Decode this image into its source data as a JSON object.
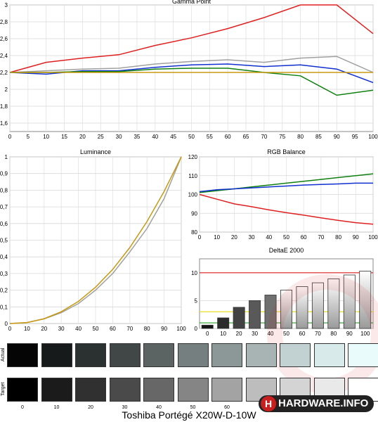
{
  "caption": "Toshiba Portégé X20W-D-10W",
  "logo_text": "HARDWARE.INFO",
  "logo_letter": "H",
  "patch_rows": {
    "actual": "Actual",
    "target": "Target"
  },
  "patches": {
    "labels": [
      "0",
      "10",
      "20",
      "30",
      "40",
      "50",
      "60",
      "70",
      "80",
      "90",
      "100"
    ],
    "actual_colors": [
      "#050505",
      "#161a1a",
      "#2b3131",
      "#404746",
      "#5b6363",
      "#767f7f",
      "#8c9797",
      "#a8b4b4",
      "#c2d1d1",
      "#d9eaea",
      "#e9fbfb"
    ],
    "target_colors": [
      "#000000",
      "#1b1b1b",
      "#303030",
      "#4a4a4a",
      "#676767",
      "#858585",
      "#a3a3a3",
      "#bdbdbd",
      "#d4d4d4",
      "#e9e9e9",
      "#ffffff"
    ]
  },
  "chart_data": [
    {
      "type": "line",
      "title": "Gamma Point",
      "x": [
        0,
        10,
        20,
        30,
        40,
        50,
        60,
        70,
        80,
        90,
        100
      ],
      "xticks": [
        "0",
        "5",
        "10",
        "15",
        "20",
        "25",
        "30",
        "35",
        "40",
        "45",
        "50",
        "55",
        "60",
        "65",
        "70",
        "75",
        "80",
        "85",
        "90",
        "95",
        "100"
      ],
      "yticks": [
        "1,6",
        "1,8",
        "2",
        "2,2",
        "2,4",
        "2,6",
        "2,8",
        "3"
      ],
      "ylim": [
        1.5,
        3.0
      ],
      "series": [
        {
          "color": "#e02020",
          "values": [
            2.2,
            2.32,
            2.37,
            2.41,
            2.52,
            2.61,
            2.72,
            2.85,
            3.0,
            3.0,
            2.66
          ]
        },
        {
          "color": "#a0a0a0",
          "values": [
            2.2,
            2.22,
            2.24,
            2.25,
            2.3,
            2.33,
            2.35,
            2.32,
            2.37,
            2.39,
            2.2
          ]
        },
        {
          "color": "#1030d0",
          "values": [
            2.2,
            2.18,
            2.22,
            2.22,
            2.26,
            2.29,
            2.3,
            2.27,
            2.29,
            2.24,
            2.08
          ]
        },
        {
          "color": "#108010",
          "values": [
            2.2,
            2.2,
            2.21,
            2.21,
            2.24,
            2.25,
            2.25,
            2.2,
            2.16,
            1.93,
            1.99
          ]
        },
        {
          "color": "#c89a10",
          "values": [
            2.2,
            2.2,
            2.2,
            2.2,
            2.2,
            2.2,
            2.2,
            2.2,
            2.2,
            2.2,
            2.2
          ]
        }
      ]
    },
    {
      "type": "line",
      "title": "Luminance",
      "x": [
        0,
        10,
        20,
        30,
        40,
        50,
        60,
        70,
        80,
        90,
        100
      ],
      "xticks": [
        "0",
        "10",
        "20",
        "30",
        "40",
        "50",
        "60",
        "70",
        "80",
        "90",
        "100"
      ],
      "yticks": [
        "0",
        "0,1",
        "0,2",
        "0,3",
        "0,4",
        "0,5",
        "0,6",
        "0,7",
        "0,8",
        "0,9",
        "1"
      ],
      "ylim": [
        0,
        1
      ],
      "series": [
        {
          "color": "#a0a0a0",
          "values": [
            0,
            0.006,
            0.028,
            0.065,
            0.12,
            0.2,
            0.3,
            0.43,
            0.57,
            0.75,
            1.0
          ]
        },
        {
          "color": "#c89a10",
          "values": [
            0,
            0.006,
            0.029,
            0.071,
            0.133,
            0.218,
            0.325,
            0.456,
            0.612,
            0.793,
            1.0
          ]
        }
      ]
    },
    {
      "type": "line",
      "title": "RGB Balance",
      "x": [
        0,
        10,
        20,
        30,
        40,
        50,
        60,
        70,
        80,
        90,
        100
      ],
      "xticks": [
        "0",
        "10",
        "20",
        "30",
        "40",
        "50",
        "60",
        "70",
        "80",
        "90",
        "100"
      ],
      "yticks": [
        "80",
        "90",
        "100",
        "110",
        "120"
      ],
      "ylim": [
        80,
        120
      ],
      "series": [
        {
          "color": "#e02020",
          "values": [
            100,
            97.5,
            95,
            93.5,
            91.8,
            90.3,
            89,
            87.6,
            86.2,
            85,
            84.2
          ]
        },
        {
          "color": "#108010",
          "values": [
            101,
            102,
            103,
            104,
            105,
            106,
            107,
            108,
            109,
            110,
            111
          ]
        },
        {
          "color": "#1030d0",
          "values": [
            101.5,
            102.5,
            103,
            103.5,
            104,
            104.5,
            105,
            105.3,
            105.6,
            106,
            106
          ]
        }
      ]
    },
    {
      "type": "bar",
      "title": "DeltaE 2000",
      "categories": [
        "0",
        "10",
        "20",
        "30",
        "40",
        "50",
        "60",
        "70",
        "80",
        "90",
        "100"
      ],
      "values": [
        0.6,
        1.9,
        3.8,
        5.0,
        6.0,
        6.9,
        7.5,
        8.2,
        8.9,
        9.6,
        10.3
      ],
      "yticks": [
        "0",
        "5",
        "10"
      ],
      "ylim": [
        0,
        12.5
      ],
      "ref_lines": [
        {
          "y": 1,
          "color": "#2aa02a"
        },
        {
          "y": 3,
          "color": "#e8e020"
        },
        {
          "y": 10,
          "color": "#e02020"
        }
      ]
    }
  ]
}
